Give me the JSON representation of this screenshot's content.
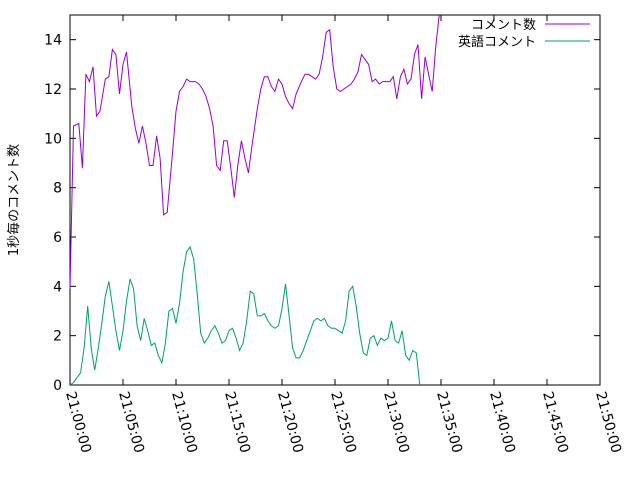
{
  "chart_data": {
    "type": "line",
    "ylabel": "1秒毎のコメント数",
    "ylim": [
      0,
      15
    ],
    "y_ticks": [
      0,
      2,
      4,
      6,
      8,
      10,
      12,
      14
    ],
    "y_tick_labels": [
      "0",
      "2",
      "4",
      "6",
      "8",
      "10",
      "12",
      "14"
    ],
    "xlim": [
      "21:00:00",
      "21:50:00"
    ],
    "x_ticks": [
      "21:00:00",
      "21:05:00",
      "21:10:00",
      "21:15:00",
      "21:20:00",
      "21:25:00",
      "21:30:00",
      "21:35:00",
      "21:40:00",
      "21:45:00",
      "21:50:00"
    ],
    "legend_position": "top-right",
    "grid": false,
    "series": [
      {
        "name": "コメント数",
        "color": "#9400d3",
        "points": [
          [
            "21:00:00",
            3.9
          ],
          [
            "21:00:20",
            10.5
          ],
          [
            "21:00:50",
            10.6
          ],
          [
            "21:01:10",
            8.8
          ],
          [
            "21:01:30",
            12.6
          ],
          [
            "21:01:50",
            12.3
          ],
          [
            "21:02:10",
            12.9
          ],
          [
            "21:02:30",
            10.9
          ],
          [
            "21:02:50",
            11.1
          ],
          [
            "21:03:20",
            12.4
          ],
          [
            "21:03:40",
            12.5
          ],
          [
            "21:04:00",
            13.6
          ],
          [
            "21:04:20",
            13.4
          ],
          [
            "21:04:40",
            11.8
          ],
          [
            "21:05:00",
            13.0
          ],
          [
            "21:05:20",
            13.5
          ],
          [
            "21:05:50",
            11.3
          ],
          [
            "21:06:10",
            10.4
          ],
          [
            "21:06:30",
            9.8
          ],
          [
            "21:06:50",
            10.5
          ],
          [
            "21:07:10",
            9.8
          ],
          [
            "21:07:30",
            8.9
          ],
          [
            "21:07:50",
            8.9
          ],
          [
            "21:08:10",
            10.1
          ],
          [
            "21:08:30",
            9.2
          ],
          [
            "21:08:50",
            6.9
          ],
          [
            "21:09:10",
            7.0
          ],
          [
            "21:09:40",
            9.4
          ],
          [
            "21:10:00",
            11.1
          ],
          [
            "21:10:20",
            11.9
          ],
          [
            "21:10:40",
            12.1
          ],
          [
            "21:11:00",
            12.4
          ],
          [
            "21:11:20",
            12.3
          ],
          [
            "21:11:50",
            12.3
          ],
          [
            "21:12:10",
            12.2
          ],
          [
            "21:12:30",
            12.0
          ],
          [
            "21:12:50",
            11.7
          ],
          [
            "21:13:10",
            11.2
          ],
          [
            "21:13:30",
            10.5
          ],
          [
            "21:13:50",
            8.9
          ],
          [
            "21:14:10",
            8.7
          ],
          [
            "21:14:30",
            9.9
          ],
          [
            "21:14:50",
            9.9
          ],
          [
            "21:15:10",
            8.8
          ],
          [
            "21:15:30",
            7.6
          ],
          [
            "21:15:50",
            8.9
          ],
          [
            "21:16:10",
            9.9
          ],
          [
            "21:16:30",
            9.2
          ],
          [
            "21:16:50",
            8.6
          ],
          [
            "21:17:10",
            9.7
          ],
          [
            "21:17:40",
            11.2
          ],
          [
            "21:18:00",
            12.0
          ],
          [
            "21:18:20",
            12.5
          ],
          [
            "21:18:40",
            12.5
          ],
          [
            "21:19:00",
            12.1
          ],
          [
            "21:19:20",
            11.9
          ],
          [
            "21:19:40",
            12.4
          ],
          [
            "21:20:00",
            12.2
          ],
          [
            "21:20:20",
            11.7
          ],
          [
            "21:20:40",
            11.4
          ],
          [
            "21:21:00",
            11.2
          ],
          [
            "21:21:20",
            11.8
          ],
          [
            "21:21:50",
            12.3
          ],
          [
            "21:22:10",
            12.6
          ],
          [
            "21:22:30",
            12.6
          ],
          [
            "21:22:50",
            12.5
          ],
          [
            "21:23:10",
            12.4
          ],
          [
            "21:23:30",
            12.6
          ],
          [
            "21:23:50",
            13.3
          ],
          [
            "21:24:10",
            14.3
          ],
          [
            "21:24:30",
            14.4
          ],
          [
            "21:24:50",
            12.9
          ],
          [
            "21:25:10",
            12.0
          ],
          [
            "21:25:30",
            11.9
          ],
          [
            "21:25:50",
            12.0
          ],
          [
            "21:26:10",
            12.1
          ],
          [
            "21:26:30",
            12.2
          ],
          [
            "21:26:50",
            12.4
          ],
          [
            "21:27:10",
            12.7
          ],
          [
            "21:27:30",
            13.4
          ],
          [
            "21:27:50",
            13.2
          ],
          [
            "21:28:10",
            13.0
          ],
          [
            "21:28:30",
            12.3
          ],
          [
            "21:28:50",
            12.4
          ],
          [
            "21:29:10",
            12.2
          ],
          [
            "21:29:30",
            12.3
          ],
          [
            "21:29:50",
            12.3
          ],
          [
            "21:30:10",
            12.3
          ],
          [
            "21:30:30",
            12.5
          ],
          [
            "21:30:50",
            11.6
          ],
          [
            "21:31:10",
            12.5
          ],
          [
            "21:31:30",
            12.8
          ],
          [
            "21:31:50",
            12.2
          ],
          [
            "21:32:10",
            12.4
          ],
          [
            "21:32:30",
            13.4
          ],
          [
            "21:32:50",
            13.8
          ],
          [
            "21:33:10",
            11.6
          ],
          [
            "21:33:30",
            13.3
          ],
          [
            "21:33:50",
            12.6
          ],
          [
            "21:34:10",
            11.9
          ],
          [
            "21:34:30",
            13.7
          ],
          [
            "21:34:50",
            15.0
          ]
        ]
      },
      {
        "name": "英語コメント",
        "color": "#009e73",
        "points": [
          [
            "21:00:00",
            0.0
          ],
          [
            "21:00:20",
            0.1
          ],
          [
            "21:00:40",
            0.3
          ],
          [
            "21:01:00",
            0.5
          ],
          [
            "21:01:20",
            1.5
          ],
          [
            "21:01:40",
            3.2
          ],
          [
            "21:02:00",
            1.5
          ],
          [
            "21:02:20",
            0.6
          ],
          [
            "21:02:40",
            1.5
          ],
          [
            "21:03:00",
            2.5
          ],
          [
            "21:03:20",
            3.6
          ],
          [
            "21:03:40",
            4.2
          ],
          [
            "21:04:00",
            3.2
          ],
          [
            "21:04:20",
            2.2
          ],
          [
            "21:04:40",
            1.4
          ],
          [
            "21:05:00",
            2.2
          ],
          [
            "21:05:20",
            3.4
          ],
          [
            "21:05:40",
            4.3
          ],
          [
            "21:06:00",
            3.9
          ],
          [
            "21:06:20",
            2.4
          ],
          [
            "21:06:40",
            1.8
          ],
          [
            "21:07:00",
            2.7
          ],
          [
            "21:07:20",
            2.2
          ],
          [
            "21:07:40",
            1.6
          ],
          [
            "21:08:00",
            1.7
          ],
          [
            "21:08:20",
            1.2
          ],
          [
            "21:08:40",
            0.9
          ],
          [
            "21:09:00",
            1.7
          ],
          [
            "21:09:20",
            3.0
          ],
          [
            "21:09:40",
            3.1
          ],
          [
            "21:10:00",
            2.5
          ],
          [
            "21:10:20",
            3.3
          ],
          [
            "21:10:40",
            4.6
          ],
          [
            "21:11:00",
            5.4
          ],
          [
            "21:11:20",
            5.6
          ],
          [
            "21:11:40",
            5.1
          ],
          [
            "21:12:00",
            3.7
          ],
          [
            "21:12:20",
            2.1
          ],
          [
            "21:12:40",
            1.7
          ],
          [
            "21:13:00",
            1.9
          ],
          [
            "21:13:20",
            2.2
          ],
          [
            "21:13:40",
            2.4
          ],
          [
            "21:14:00",
            2.1
          ],
          [
            "21:14:20",
            1.7
          ],
          [
            "21:14:40",
            1.8
          ],
          [
            "21:15:00",
            2.2
          ],
          [
            "21:15:20",
            2.3
          ],
          [
            "21:15:40",
            1.9
          ],
          [
            "21:16:00",
            1.4
          ],
          [
            "21:16:20",
            1.7
          ],
          [
            "21:16:40",
            2.6
          ],
          [
            "21:17:00",
            3.8
          ],
          [
            "21:17:20",
            3.7
          ],
          [
            "21:17:40",
            2.8
          ],
          [
            "21:18:00",
            2.8
          ],
          [
            "21:18:20",
            2.9
          ],
          [
            "21:18:40",
            2.6
          ],
          [
            "21:19:00",
            2.4
          ],
          [
            "21:19:20",
            2.3
          ],
          [
            "21:19:40",
            2.4
          ],
          [
            "21:20:00",
            3.1
          ],
          [
            "21:20:20",
            4.1
          ],
          [
            "21:20:40",
            2.8
          ],
          [
            "21:21:00",
            1.5
          ],
          [
            "21:21:20",
            1.1
          ],
          [
            "21:21:40",
            1.1
          ],
          [
            "21:22:00",
            1.4
          ],
          [
            "21:22:20",
            1.8
          ],
          [
            "21:22:40",
            2.2
          ],
          [
            "21:23:00",
            2.6
          ],
          [
            "21:23:20",
            2.7
          ],
          [
            "21:23:40",
            2.6
          ],
          [
            "21:24:00",
            2.7
          ],
          [
            "21:24:20",
            2.4
          ],
          [
            "21:24:40",
            2.3
          ],
          [
            "21:25:00",
            2.3
          ],
          [
            "21:25:20",
            2.2
          ],
          [
            "21:25:40",
            2.1
          ],
          [
            "21:26:00",
            2.6
          ],
          [
            "21:26:20",
            3.8
          ],
          [
            "21:26:40",
            4.0
          ],
          [
            "21:27:00",
            3.2
          ],
          [
            "21:27:20",
            2.1
          ],
          [
            "21:27:40",
            1.3
          ],
          [
            "21:28:00",
            1.2
          ],
          [
            "21:28:20",
            1.9
          ],
          [
            "21:28:40",
            2.0
          ],
          [
            "21:29:00",
            1.6
          ],
          [
            "21:29:20",
            1.9
          ],
          [
            "21:29:40",
            1.8
          ],
          [
            "21:30:00",
            1.9
          ],
          [
            "21:30:20",
            2.6
          ],
          [
            "21:30:40",
            1.8
          ],
          [
            "21:31:00",
            1.7
          ],
          [
            "21:31:20",
            2.2
          ],
          [
            "21:31:40",
            1.2
          ],
          [
            "21:32:00",
            1.0
          ],
          [
            "21:32:20",
            1.4
          ],
          [
            "21:32:40",
            1.3
          ],
          [
            "21:33:00",
            0.0
          ]
        ]
      }
    ]
  }
}
